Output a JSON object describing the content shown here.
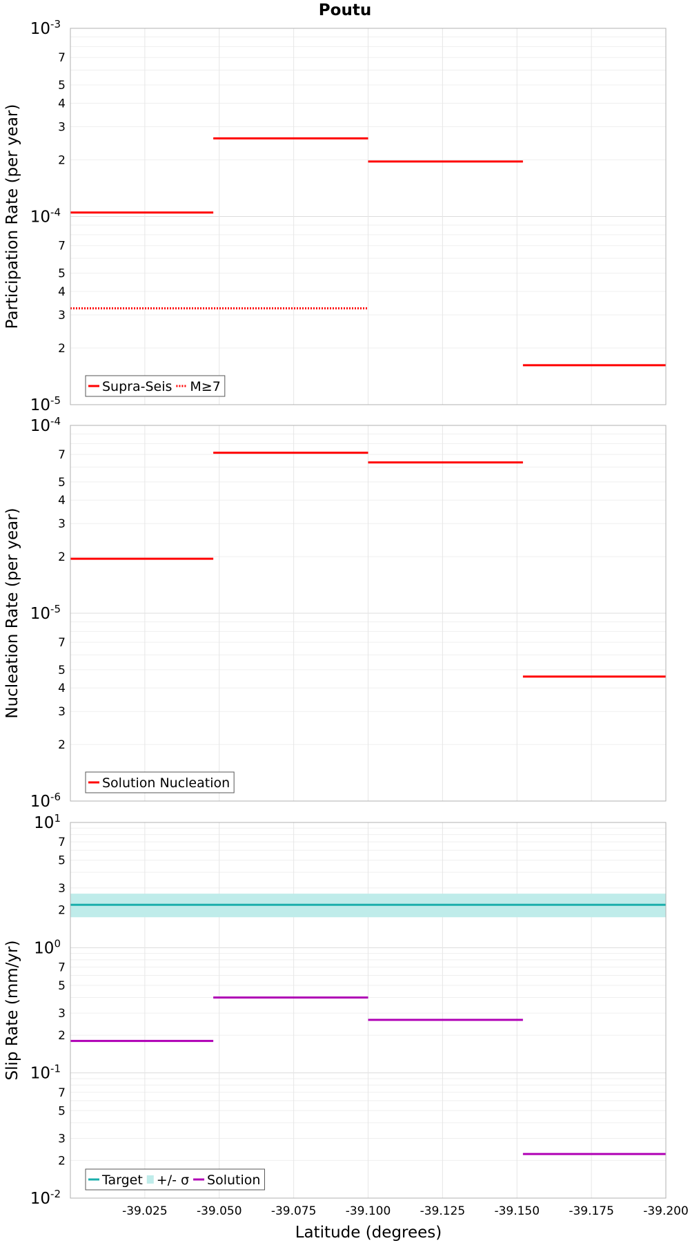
{
  "figure_title": "Poutu",
  "x_axis_label": "Latitude (degrees)",
  "chart_data": [
    {
      "type": "line",
      "panel": "participation",
      "ylabel": "Participation Rate (per year)",
      "yscale": "log",
      "ylim": [
        1e-05,
        0.001
      ],
      "xlim": [
        -39.0,
        -39.2
      ],
      "series": [
        {
          "name": "Supra-Seis",
          "color": "#ff0000",
          "style": "solid",
          "segments": [
            {
              "x": [
                -39.0,
                -39.048
              ],
              "y": 0.000105
            },
            {
              "x": [
                -39.048,
                -39.1
              ],
              "y": 0.00026
            },
            {
              "x": [
                -39.1,
                -39.152
              ],
              "y": 0.000196
            },
            {
              "x": [
                -39.152,
                -39.2
              ],
              "y": 1.62e-05
            }
          ]
        },
        {
          "name": "M≥7",
          "color": "#ff0000",
          "style": "dotted",
          "segments": [
            {
              "x": [
                -39.0,
                -39.1
              ],
              "y": 3.25e-05
            }
          ]
        }
      ],
      "legend": [
        {
          "label": "Supra-Seis",
          "color": "#ff0000",
          "style": "solid"
        },
        {
          "label": "M≥7",
          "color": "#ff0000",
          "style": "dotted"
        }
      ]
    },
    {
      "type": "line",
      "panel": "nucleation",
      "ylabel": "Nucleation Rate (per year)",
      "yscale": "log",
      "ylim": [
        1e-06,
        0.0001
      ],
      "xlim": [
        -39.0,
        -39.2
      ],
      "series": [
        {
          "name": "Solution Nucleation",
          "color": "#ff0000",
          "style": "solid",
          "segments": [
            {
              "x": [
                -39.0,
                -39.048
              ],
              "y": 1.95e-05
            },
            {
              "x": [
                -39.048,
                -39.1
              ],
              "y": 7.15e-05
            },
            {
              "x": [
                -39.1,
                -39.152
              ],
              "y": 6.35e-05
            },
            {
              "x": [
                -39.152,
                -39.2
              ],
              "y": 4.6e-06
            }
          ]
        }
      ],
      "legend": [
        {
          "label": "Solution Nucleation",
          "color": "#ff0000",
          "style": "solid"
        }
      ]
    },
    {
      "type": "line",
      "panel": "slip",
      "ylabel": "Slip Rate (mm/yr)",
      "yscale": "log",
      "ylim": [
        0.01,
        10
      ],
      "xlim": [
        -39.0,
        -39.2
      ],
      "band": {
        "name": "+/- σ",
        "color": "#bfecea",
        "y": [
          1.75,
          2.7
        ],
        "x": [
          -39.0,
          -39.2
        ]
      },
      "series": [
        {
          "name": "Target",
          "color": "#1aaeab",
          "style": "solid",
          "segments": [
            {
              "x": [
                -39.0,
                -39.2
              ],
              "y": 2.2
            }
          ]
        },
        {
          "name": "Solution",
          "color": "#b000b5",
          "style": "solid",
          "segments": [
            {
              "x": [
                -39.0,
                -39.048
              ],
              "y": 0.18
            },
            {
              "x": [
                -39.048,
                -39.1
              ],
              "y": 0.4
            },
            {
              "x": [
                -39.1,
                -39.152
              ],
              "y": 0.265
            },
            {
              "x": [
                -39.152,
                -39.2
              ],
              "y": 0.0225
            }
          ]
        }
      ],
      "legend": [
        {
          "label": "Target",
          "color": "#1aaeab",
          "style": "solid"
        },
        {
          "label": "+/- σ",
          "color": "#bfecea",
          "style": "band"
        },
        {
          "label": "Solution",
          "color": "#b000b5",
          "style": "solid"
        }
      ]
    }
  ],
  "x_ticks": [
    {
      "value": -39.025,
      "label": "-39.025"
    },
    {
      "value": -39.05,
      "label": "-39.050"
    },
    {
      "value": -39.075,
      "label": "-39.075"
    },
    {
      "value": -39.1,
      "label": "-39.100"
    },
    {
      "value": -39.125,
      "label": "-39.125"
    },
    {
      "value": -39.15,
      "label": "-39.150"
    },
    {
      "value": -39.175,
      "label": "-39.175"
    },
    {
      "value": -39.2,
      "label": "-39.200"
    }
  ],
  "y_ticks": [
    {
      "major": [
        {
          "value": 0.001,
          "base": "10",
          "exp": "-3"
        },
        {
          "value": 0.0001,
          "base": "10",
          "exp": "-4"
        },
        {
          "value": 1e-05,
          "base": "10",
          "exp": "-5"
        }
      ],
      "minor": [
        {
          "value": 0.0007,
          "label": "7"
        },
        {
          "value": 0.0005,
          "label": "5"
        },
        {
          "value": 0.0004,
          "label": "4"
        },
        {
          "value": 0.0003,
          "label": "3"
        },
        {
          "value": 0.0002,
          "label": "2"
        },
        {
          "value": 7e-05,
          "label": "7"
        },
        {
          "value": 5e-05,
          "label": "5"
        },
        {
          "value": 4e-05,
          "label": "4"
        },
        {
          "value": 3e-05,
          "label": "3"
        },
        {
          "value": 2e-05,
          "label": "2"
        }
      ]
    },
    {
      "major": [
        {
          "value": 0.0001,
          "base": "10",
          "exp": "-4"
        },
        {
          "value": 1e-05,
          "base": "10",
          "exp": "-5"
        },
        {
          "value": 1e-06,
          "base": "10",
          "exp": "-6"
        }
      ],
      "minor": [
        {
          "value": 7e-05,
          "label": "7"
        },
        {
          "value": 5e-05,
          "label": "5"
        },
        {
          "value": 4e-05,
          "label": "4"
        },
        {
          "value": 3e-05,
          "label": "3"
        },
        {
          "value": 2e-05,
          "label": "2"
        },
        {
          "value": 7e-06,
          "label": "7"
        },
        {
          "value": 5e-06,
          "label": "5"
        },
        {
          "value": 4e-06,
          "label": "4"
        },
        {
          "value": 3e-06,
          "label": "3"
        },
        {
          "value": 2e-06,
          "label": "2"
        }
      ]
    },
    {
      "major": [
        {
          "value": 10,
          "base": "10",
          "exp": "1"
        },
        {
          "value": 1,
          "base": "10",
          "exp": "0"
        },
        {
          "value": 0.1,
          "base": "10",
          "exp": "-1"
        },
        {
          "value": 0.01,
          "base": "10",
          "exp": "-2"
        }
      ],
      "minor": [
        {
          "value": 7,
          "label": "7"
        },
        {
          "value": 5,
          "label": "5"
        },
        {
          "value": 3,
          "label": "3"
        },
        {
          "value": 2,
          "label": "2"
        },
        {
          "value": 0.7,
          "label": "7"
        },
        {
          "value": 0.5,
          "label": "5"
        },
        {
          "value": 0.3,
          "label": "3"
        },
        {
          "value": 0.2,
          "label": "2"
        },
        {
          "value": 0.07,
          "label": "7"
        },
        {
          "value": 0.05,
          "label": "5"
        },
        {
          "value": 0.03,
          "label": "3"
        },
        {
          "value": 0.02,
          "label": "2"
        }
      ]
    }
  ]
}
